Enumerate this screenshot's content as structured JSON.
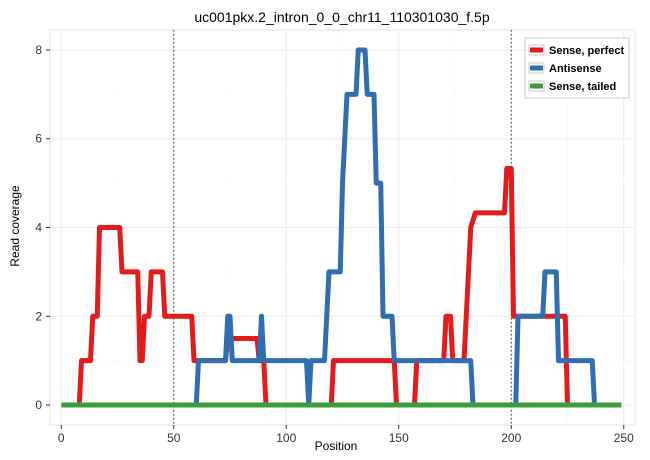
{
  "chart_data": {
    "type": "line",
    "title": "uc001pkx.2_intron_0_0_chr11_110301030_f.5p",
    "xlabel": "Position",
    "ylabel": "Read coverage",
    "xlim": [
      -5,
      255
    ],
    "ylim": [
      -0.45,
      8.45
    ],
    "x_ticks": [
      0,
      50,
      100,
      150,
      200,
      250
    ],
    "y_ticks": [
      0,
      2,
      4,
      6,
      8
    ],
    "grid": true,
    "vlines": [
      50,
      200
    ],
    "legend_position": "top-right",
    "series": [
      {
        "name": "Sense, perfect",
        "color": "#e41a1c",
        "points": [
          [
            8,
            0
          ],
          [
            9,
            1
          ],
          [
            13,
            1
          ],
          [
            14,
            2
          ],
          [
            16,
            2
          ],
          [
            17,
            4
          ],
          [
            26,
            4
          ],
          [
            27,
            3
          ],
          [
            34,
            3
          ],
          [
            35,
            1
          ],
          [
            36,
            1
          ],
          [
            37,
            2
          ],
          [
            39,
            2
          ],
          [
            40,
            3
          ],
          [
            45,
            3
          ],
          [
            46,
            2
          ],
          [
            58,
            2
          ],
          [
            59,
            1
          ],
          [
            73,
            1
          ],
          [
            74,
            1.5
          ],
          [
            87,
            1.5
          ],
          [
            88,
            1
          ],
          [
            90,
            1
          ],
          [
            91,
            0
          ],
          [
            120,
            0
          ],
          [
            121,
            1
          ],
          [
            148,
            1
          ],
          [
            149,
            0
          ],
          [
            157,
            0
          ],
          [
            158,
            1
          ],
          [
            170,
            1
          ],
          [
            171,
            2
          ],
          [
            173,
            2
          ],
          [
            174,
            1
          ],
          [
            179,
            1
          ],
          [
            180,
            2
          ],
          [
            181,
            3
          ],
          [
            182,
            4
          ],
          [
            184,
            4.33
          ],
          [
            197,
            4.33
          ],
          [
            198,
            5.33
          ],
          [
            200,
            5.33
          ],
          [
            201,
            2
          ],
          [
            224,
            2
          ],
          [
            225,
            0
          ]
        ]
      },
      {
        "name": "Antisense",
        "color": "#2f6eb1",
        "points": [
          [
            60,
            0
          ],
          [
            61,
            1
          ],
          [
            73,
            1
          ],
          [
            74,
            2
          ],
          [
            75,
            2
          ],
          [
            76,
            1
          ],
          [
            88,
            1
          ],
          [
            89,
            2
          ],
          [
            90,
            1
          ],
          [
            109,
            1
          ],
          [
            110,
            0
          ],
          [
            111,
            1
          ],
          [
            117,
            1
          ],
          [
            118,
            2
          ],
          [
            119,
            3
          ],
          [
            124,
            3
          ],
          [
            125,
            5
          ],
          [
            126,
            6
          ],
          [
            127,
            7
          ],
          [
            131,
            7
          ],
          [
            132,
            8
          ],
          [
            135,
            8
          ],
          [
            136,
            7
          ],
          [
            139,
            7
          ],
          [
            140,
            5
          ],
          [
            142,
            5
          ],
          [
            143,
            2
          ],
          [
            147,
            2
          ],
          [
            148,
            1
          ],
          [
            182,
            1
          ],
          [
            183,
            0
          ],
          [
            202,
            0
          ],
          [
            203,
            2
          ],
          [
            214,
            2
          ],
          [
            215,
            3
          ],
          [
            220,
            3
          ],
          [
            221,
            1
          ],
          [
            236,
            1
          ],
          [
            237,
            0
          ]
        ]
      },
      {
        "name": "Sense, tailed",
        "color": "#3a9f3a",
        "points": [
          [
            0,
            0
          ],
          [
            249,
            0
          ]
        ]
      }
    ]
  }
}
